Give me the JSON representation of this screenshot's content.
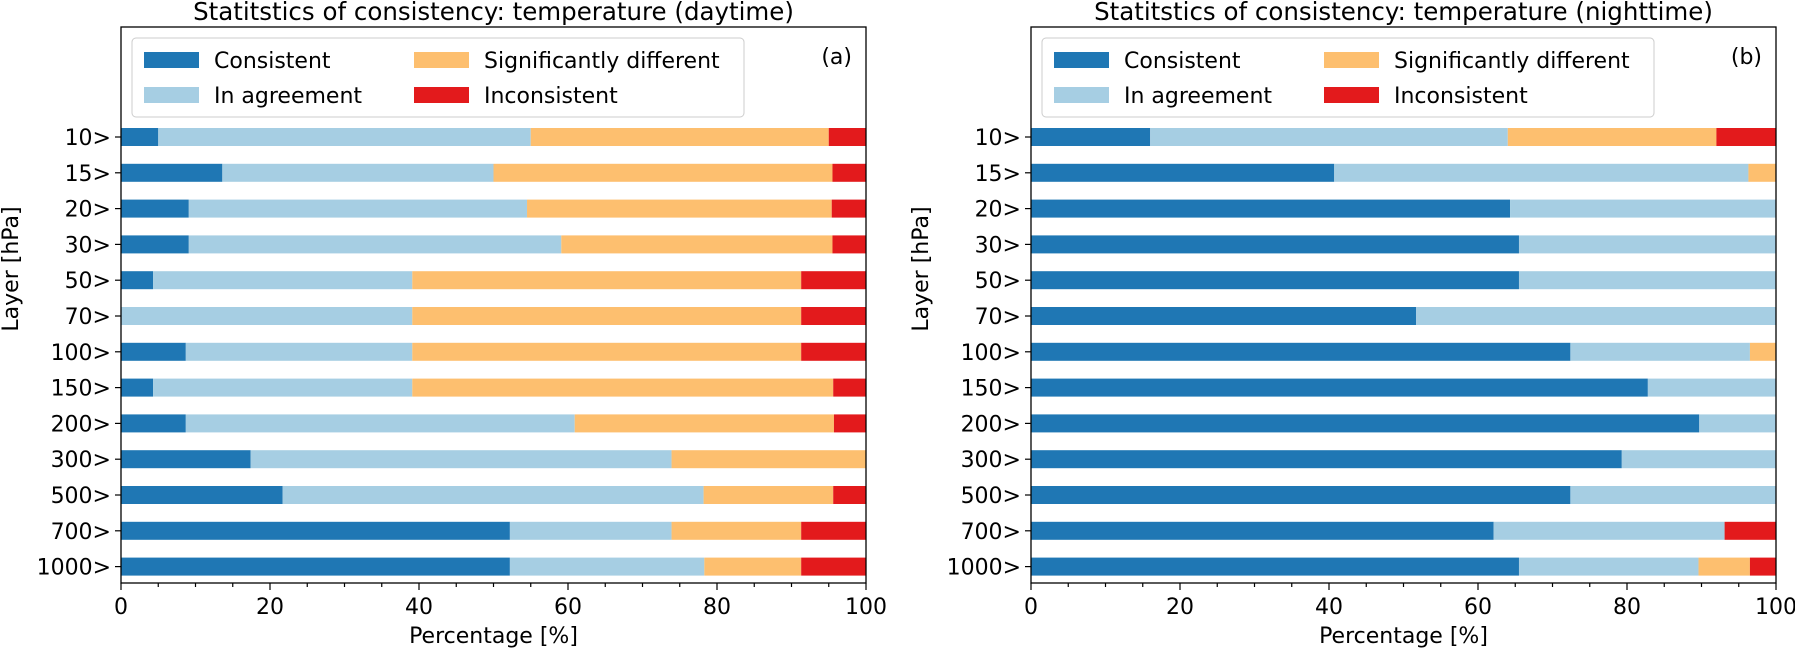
{
  "colors": {
    "consistent": "#1f77b4",
    "in_agreement": "#a6cee3",
    "significantly_different": "#fdbf6f",
    "inconsistent": "#e31a1c"
  },
  "chart_data": [
    {
      "type": "bar",
      "orientation": "horizontal",
      "stacked": true,
      "title": "Statitstics of consistency: temperature (daytime)",
      "panel_label": "(a)",
      "xlabel": "Percentage [%]",
      "ylabel": "Layer [hPa]",
      "xlim": [
        0,
        100
      ],
      "xticks": [
        "0",
        "20",
        "40",
        "60",
        "80",
        "100"
      ],
      "legend_position": "upper-left",
      "categories": [
        "10>",
        "15>",
        "20>",
        "30>",
        "50>",
        "70>",
        "100>",
        "150>",
        "200>",
        "300>",
        "500>",
        "700>",
        "1000>"
      ],
      "series": [
        {
          "name": "Consistent",
          "color": "#1f77b4",
          "values": [
            5,
            13.6,
            9.1,
            9.1,
            4.3,
            0,
            8.7,
            4.3,
            8.7,
            17.4,
            21.7,
            52.2,
            52.2
          ]
        },
        {
          "name": "In agreement",
          "color": "#a6cee3",
          "values": [
            50,
            36.4,
            45.4,
            50,
            34.8,
            39.1,
            30.4,
            34.8,
            52.2,
            56.5,
            56.5,
            21.7,
            26.1
          ]
        },
        {
          "name": "Significantly different",
          "color": "#fdbf6f",
          "values": [
            40,
            45.5,
            40.9,
            36.4,
            52.2,
            52.2,
            52.2,
            56.5,
            34.8,
            26.1,
            17.4,
            17.4,
            13
          ]
        },
        {
          "name": "Inconsistent",
          "color": "#e31a1c",
          "values": [
            5,
            4.5,
            4.6,
            4.5,
            8.7,
            8.7,
            8.7,
            4.4,
            4.3,
            0,
            4.4,
            8.7,
            8.7
          ]
        }
      ]
    },
    {
      "type": "bar",
      "orientation": "horizontal",
      "stacked": true,
      "title": "Statitstics of consistency: temperature (nighttime)",
      "panel_label": "(b)",
      "xlabel": "Percentage [%]",
      "ylabel": "Layer [hPa]",
      "xlim": [
        0,
        100
      ],
      "xticks": [
        "0",
        "20",
        "40",
        "60",
        "80",
        "100"
      ],
      "legend_position": "upper-left",
      "categories": [
        "10>",
        "15>",
        "20>",
        "30>",
        "50>",
        "70>",
        "100>",
        "150>",
        "200>",
        "300>",
        "500>",
        "700>",
        "1000>"
      ],
      "series": [
        {
          "name": "Consistent",
          "color": "#1f77b4",
          "values": [
            16,
            40.7,
            64.3,
            65.5,
            65.5,
            51.7,
            72.4,
            82.8,
            89.7,
            79.3,
            72.4,
            62.1,
            65.5
          ]
        },
        {
          "name": "In agreement",
          "color": "#a6cee3",
          "values": [
            48,
            55.6,
            35.7,
            34.5,
            34.5,
            48.3,
            24.1,
            17.2,
            10.3,
            20.7,
            27.6,
            31,
            24.1
          ]
        },
        {
          "name": "Significantly different",
          "color": "#fdbf6f",
          "values": [
            28,
            3.7,
            0,
            0,
            0,
            0,
            3.5,
            0,
            0,
            0,
            0,
            0,
            6.9
          ]
        },
        {
          "name": "Inconsistent",
          "color": "#e31a1c",
          "values": [
            8,
            0,
            0,
            0,
            0,
            0,
            0,
            0,
            0,
            0,
            0,
            6.9,
            3.5
          ]
        }
      ]
    }
  ]
}
